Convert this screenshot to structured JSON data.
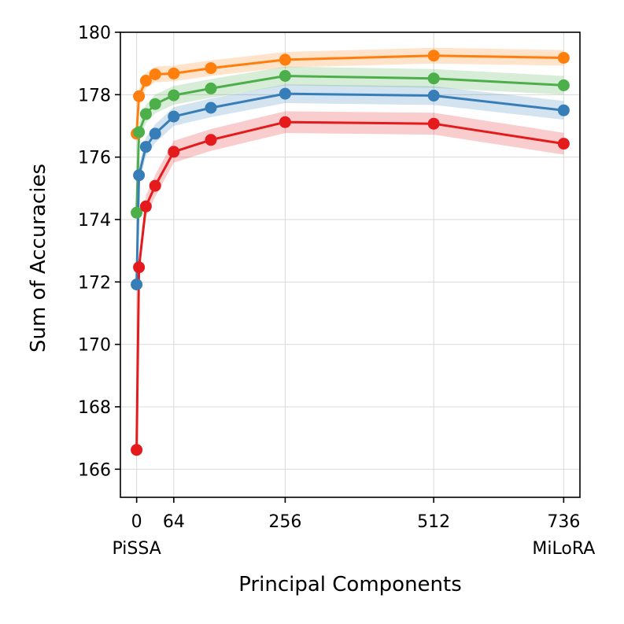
{
  "chart_data": {
    "type": "line",
    "title": "",
    "xlabel": "Principal Components",
    "ylabel": "Sum of Accuracies",
    "xlim": [
      -28,
      764
    ],
    "ylim": [
      165.1,
      180
    ],
    "grid": true,
    "xticks": [
      {
        "value": 0,
        "label": "0",
        "sublabel": "PiSSA"
      },
      {
        "value": 64,
        "label": "64",
        "sublabel": ""
      },
      {
        "value": 256,
        "label": "256",
        "sublabel": ""
      },
      {
        "value": 512,
        "label": "512",
        "sublabel": ""
      },
      {
        "value": 736,
        "label": "736",
        "sublabel": "MiLoRA"
      }
    ],
    "yticks": [
      166,
      168,
      170,
      172,
      174,
      176,
      178,
      180
    ],
    "x": [
      0,
      4,
      16,
      32,
      64,
      128,
      256,
      512,
      736
    ],
    "series": [
      {
        "name": "orange",
        "color": "#ff7f0e",
        "band": 0.25,
        "values": [
          176.75,
          177.95,
          178.45,
          178.65,
          178.68,
          178.85,
          179.12,
          179.25,
          179.18
        ]
      },
      {
        "name": "green",
        "color": "#4daf4a",
        "band": 0.3,
        "values": [
          174.22,
          176.8,
          177.38,
          177.7,
          177.98,
          178.2,
          178.6,
          178.52,
          178.3
        ]
      },
      {
        "name": "blue",
        "color": "#377eb8",
        "band": 0.3,
        "values": [
          171.92,
          175.42,
          176.33,
          176.75,
          177.3,
          177.58,
          178.03,
          177.97,
          177.5
        ]
      },
      {
        "name": "red",
        "color": "#e41a1c",
        "band": 0.35,
        "values": [
          166.62,
          172.47,
          174.42,
          175.08,
          176.17,
          176.55,
          177.12,
          177.07,
          176.43
        ]
      }
    ]
  }
}
